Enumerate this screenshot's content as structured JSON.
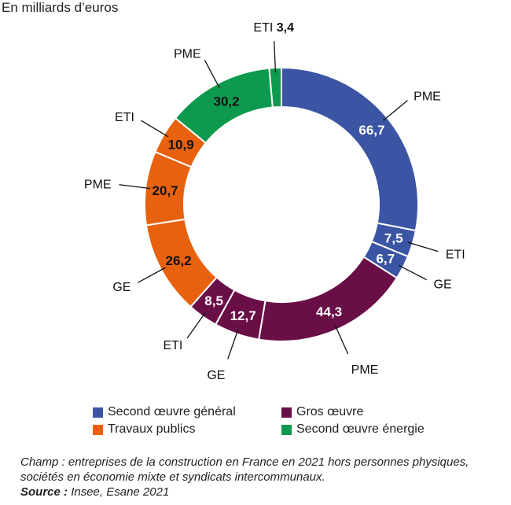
{
  "chart_data": {
    "type": "pie",
    "donut": true,
    "subtitle": "En milliards d’euros",
    "unit": "milliards d’euros",
    "start": "top, clockwise",
    "series": [
      {
        "name": "Second œuvre général",
        "color": "#3b55a4"
      },
      {
        "name": "Gros œuvre",
        "color": "#6a0e48"
      },
      {
        "name": "Travaux publics",
        "color": "#e8610e"
      },
      {
        "name": "Second œuvre énergie",
        "color": "#0e9a4e"
      }
    ],
    "slices": [
      {
        "series": 0,
        "label": "PME",
        "value": 66.7,
        "display": "66,7"
      },
      {
        "series": 0,
        "label": "ETI",
        "value": 7.5,
        "display": "7,5"
      },
      {
        "series": 0,
        "label": "GE",
        "value": 6.7,
        "display": "6,7"
      },
      {
        "series": 1,
        "label": "PME",
        "value": 44.3,
        "display": "44,3"
      },
      {
        "series": 1,
        "label": "GE",
        "value": 12.7,
        "display": "12,7"
      },
      {
        "series": 1,
        "label": "ETI",
        "value": 8.5,
        "display": "8,5"
      },
      {
        "series": 2,
        "label": "GE",
        "value": 26.2,
        "display": "26,2"
      },
      {
        "series": 2,
        "label": "PME",
        "value": 20.7,
        "display": "20,7"
      },
      {
        "series": 2,
        "label": "ETI",
        "value": 10.9,
        "display": "10,9"
      },
      {
        "series": 3,
        "label": "PME",
        "value": 30.2,
        "display": "30,2"
      },
      {
        "series": 3,
        "label": "ETI",
        "value": 3.4,
        "display": "3,4",
        "value_outside": true
      }
    ]
  },
  "note": {
    "champ_label": "Champ :",
    "champ_text": "entreprises de la construction en France en 2021 hors personnes physiques, sociétés en économie mixte et syndicats intercommunaux.",
    "source_label": "Source :",
    "source_text": "Insee, Esane 2021"
  }
}
